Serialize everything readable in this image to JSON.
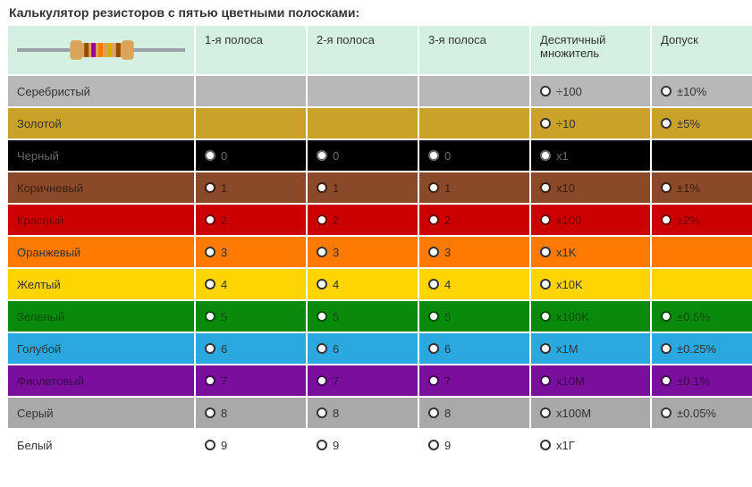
{
  "title": "Калькулятор резисторов с пятью цветными полосками:",
  "columns": {
    "band1": "1-я полоса",
    "band2": "2-я полоса",
    "band3": "3-я полоса",
    "multiplier": "Десятичный множитель",
    "tolerance": "Допуск"
  },
  "header_bg": "#d3f0e1",
  "resistor_diagram": {
    "lead_color": "#9aa0a7",
    "body_color": "#d9a55a",
    "bands": [
      "#9a4a00",
      "#9d009d",
      "#ff7a00",
      "#d4b300",
      "#9a4a00"
    ]
  },
  "rows": [
    {
      "name": "Серебристый",
      "bg": "#b8b8b8",
      "text": "#333333",
      "b1": null,
      "b2": null,
      "b3": null,
      "mult": "÷100",
      "tol": "±10%"
    },
    {
      "name": "Золотой",
      "bg": "#c9a227",
      "text": "#333333",
      "b1": null,
      "b2": null,
      "b3": null,
      "mult": "÷10",
      "tol": "±5%"
    },
    {
      "name": "Черный",
      "bg": "#000000",
      "text": "#6a6a6a",
      "b1": "0",
      "b2": "0",
      "b3": "0",
      "mult": "x1",
      "tol": null
    },
    {
      "name": "Коричневый",
      "bg": "#8a4a2a",
      "text": "#3a1e10",
      "b1": "1",
      "b2": "1",
      "b3": "1",
      "mult": "x10",
      "tol": "±1%"
    },
    {
      "name": "Красный",
      "bg": "#cc0000",
      "text": "#6e0000",
      "b1": "2",
      "b2": "2",
      "b3": "2",
      "mult": "x100",
      "tol": "±2%"
    },
    {
      "name": "Оранжевый",
      "bg": "#ff7a00",
      "text": "#333333",
      "b1": "3",
      "b2": "3",
      "b3": "3",
      "mult": "x1K",
      "tol": null
    },
    {
      "name": "Желтый",
      "bg": "#ffd500",
      "text": "#333333",
      "b1": "4",
      "b2": "4",
      "b3": "4",
      "mult": "x10K",
      "tol": null
    },
    {
      "name": "Зеленый",
      "bg": "#0a8a0a",
      "text": "#044d04",
      "b1": "5",
      "b2": "5",
      "b3": "5",
      "mult": "x100K",
      "tol": "±0.5%"
    },
    {
      "name": "Голубой",
      "bg": "#2aa8e0",
      "text": "#333333",
      "b1": "6",
      "b2": "6",
      "b3": "6",
      "mult": "x1M",
      "tol": "±0.25%"
    },
    {
      "name": "Фиолетовый",
      "bg": "#7a0f9e",
      "text": "#3d084f",
      "b1": "7",
      "b2": "7",
      "b3": "7",
      "mult": "x10M",
      "tol": "±0.1%"
    },
    {
      "name": "Серый",
      "bg": "#a9a9a9",
      "text": "#333333",
      "b1": "8",
      "b2": "8",
      "b3": "8",
      "mult": "x100M",
      "tol": "±0.05%"
    },
    {
      "name": "Белый",
      "bg": "#ffffff",
      "text": "#333333",
      "b1": "9",
      "b2": "9",
      "b3": "9",
      "mult": "x1Г",
      "tol": null
    }
  ]
}
